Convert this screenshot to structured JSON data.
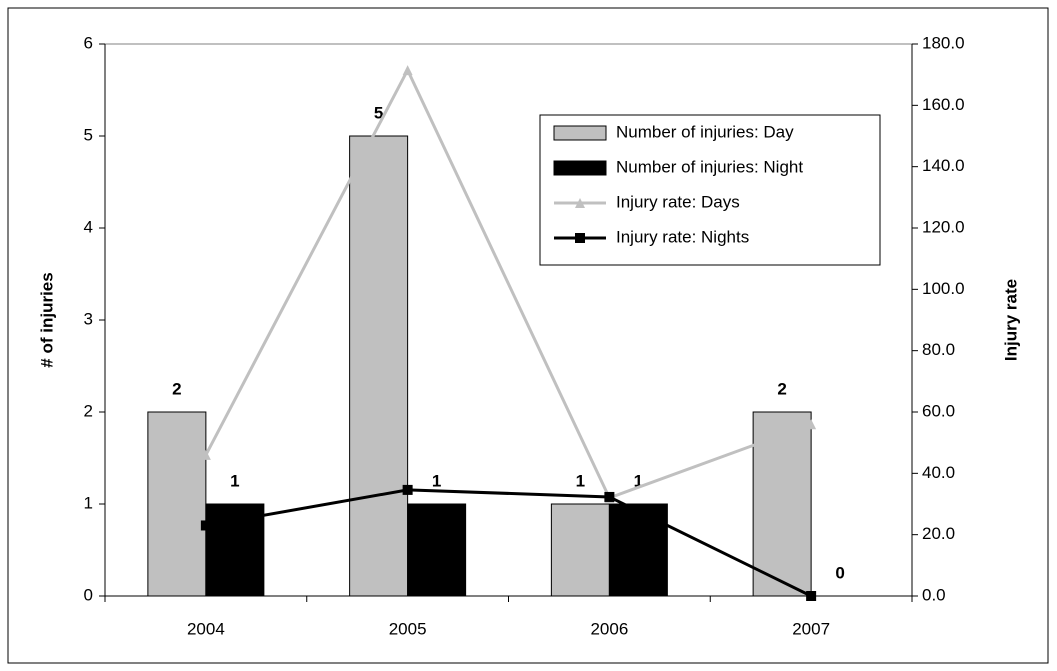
{
  "chart_data": {
    "type": "bar",
    "categories": [
      "2004",
      "2005",
      "2006",
      "2007"
    ],
    "y_label": "# of injuries",
    "y2_label": "Injury rate",
    "ylim": [
      0,
      6
    ],
    "yticks": [
      0,
      1,
      2,
      3,
      4,
      5,
      6
    ],
    "y2lim": [
      0,
      180
    ],
    "y2ticks": [
      {
        "value": 0,
        "label": "0.0"
      },
      {
        "value": 20,
        "label": "20.0"
      },
      {
        "value": 40,
        "label": "40.0"
      },
      {
        "value": 60,
        "label": "60.0"
      },
      {
        "value": 80,
        "label": "80.0"
      },
      {
        "value": 100,
        "label": "100.0"
      },
      {
        "value": 120,
        "label": "120.0"
      },
      {
        "value": 140,
        "label": "140.0"
      },
      {
        "value": 160,
        "label": "160.0"
      },
      {
        "value": 180,
        "label": "180.0"
      }
    ],
    "legend": "upper right",
    "series": [
      {
        "name": "Number of injuries: Day",
        "type": "bar",
        "color": "#c0c0c0",
        "values": [
          2,
          5,
          1,
          2
        ]
      },
      {
        "name": "Number of injuries: Night",
        "type": "bar",
        "color": "#000000",
        "values": [
          1,
          1,
          1,
          0
        ]
      },
      {
        "name": "Injury rate: Days",
        "type": "line",
        "marker": "triangle",
        "axis": "y2",
        "color": "#c0c0c0",
        "values": [
          46,
          171.5,
          32,
          56
        ]
      },
      {
        "name": "Injury rate: Nights",
        "type": "line",
        "marker": "square",
        "axis": "y2",
        "color": "#000000",
        "values": [
          23,
          34.6,
          32.3,
          0
        ]
      }
    ]
  }
}
